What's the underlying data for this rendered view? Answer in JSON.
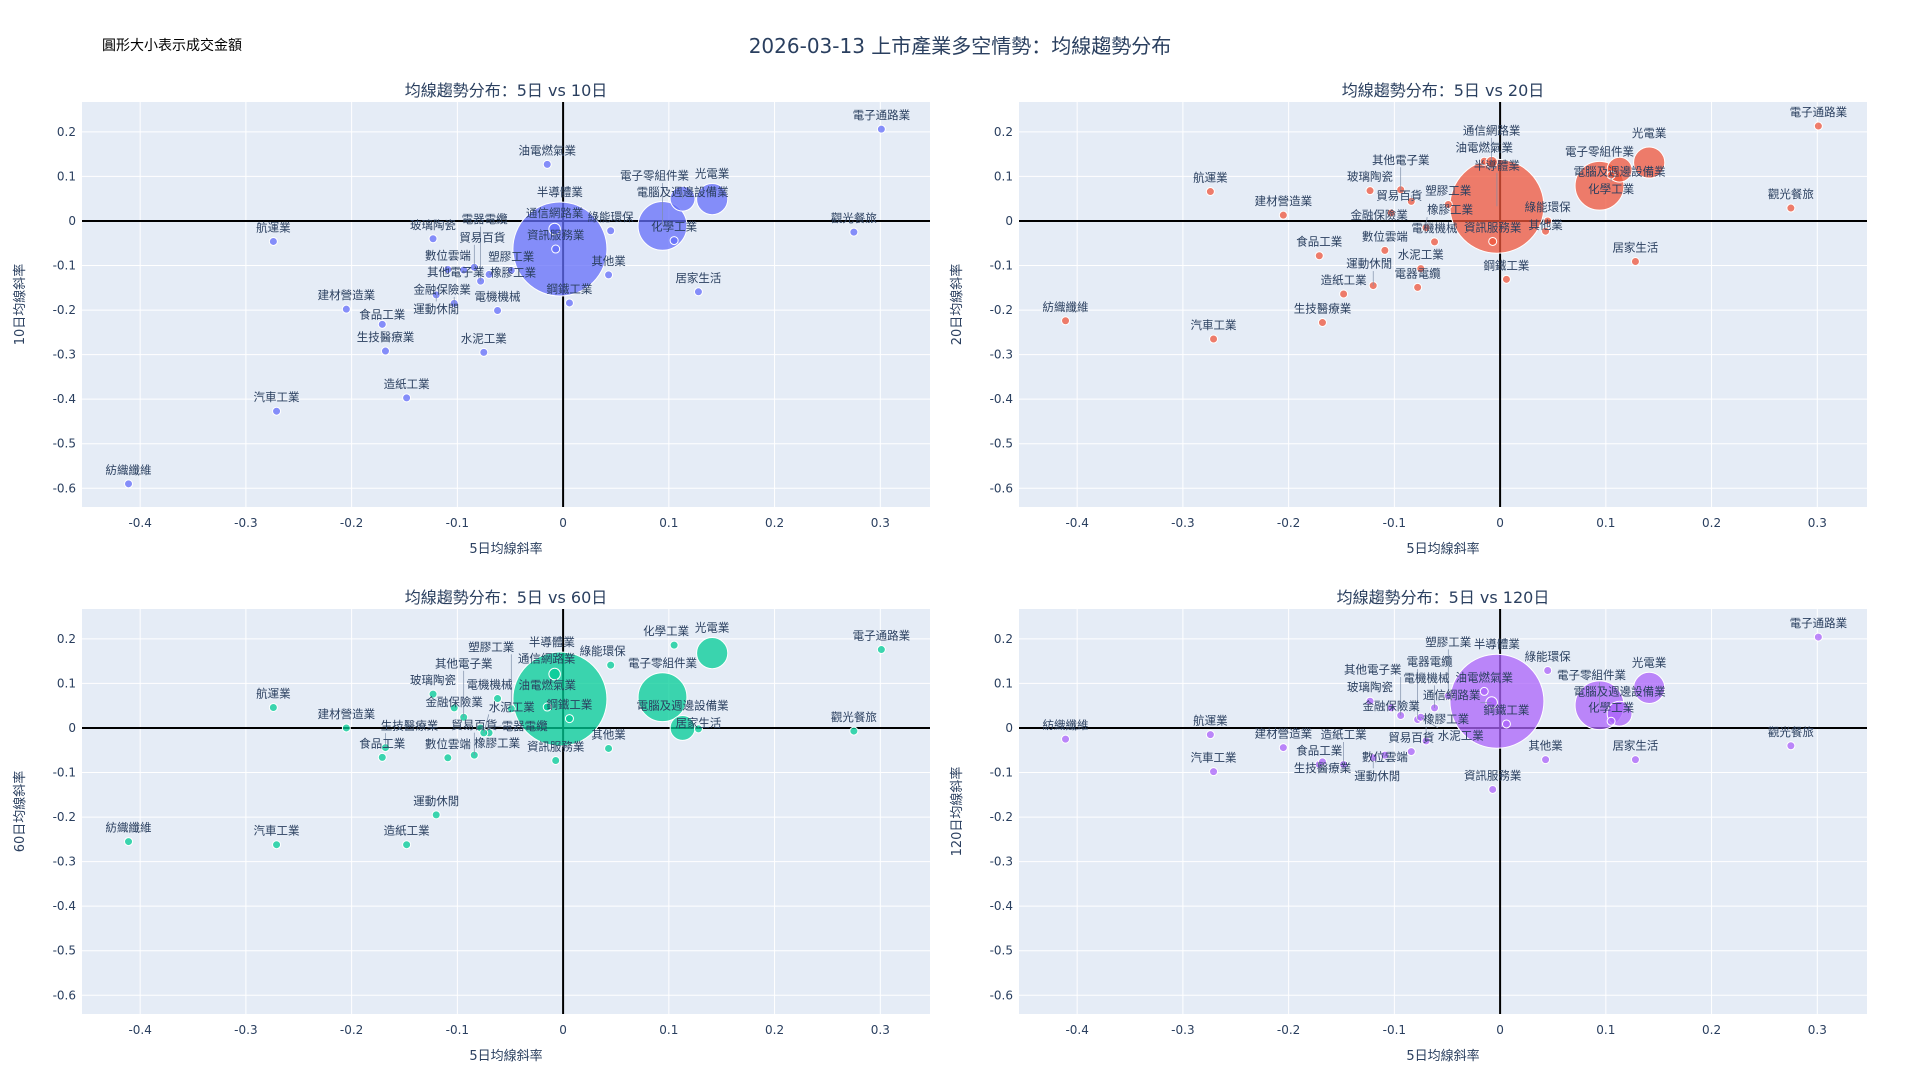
{
  "title": "2026-03-13 上市產業多空情勢：均線趨勢分布",
  "note": "圓形大小表示成交金額",
  "chart_data": [
    {
      "type": "scatter",
      "title": "均線趨勢分布：5日 vs 10日",
      "xlabel": "5日均線斜率",
      "ylabel": "10日均線斜率",
      "key": "y10",
      "color": "#636efa",
      "xlim": [
        -0.455,
        0.347
      ],
      "ylim": [
        -0.642,
        0.267
      ],
      "xticks": [
        -0.4,
        -0.3,
        -0.2,
        -0.1,
        0,
        0.1,
        0.2,
        0.3
      ],
      "yticks": [
        -0.6,
        -0.5,
        -0.4,
        -0.3,
        -0.2,
        -0.1,
        0,
        0.1,
        0.2
      ]
    },
    {
      "type": "scatter",
      "title": "均線趨勢分布：5日 vs 20日",
      "xlabel": "5日均線斜率",
      "ylabel": "20日均線斜率",
      "key": "y20",
      "color": "#ef553b",
      "xlim": [
        -0.455,
        0.347
      ],
      "ylim": [
        -0.642,
        0.267
      ],
      "xticks": [
        -0.4,
        -0.3,
        -0.2,
        -0.1,
        0,
        0.1,
        0.2,
        0.3
      ],
      "yticks": [
        -0.6,
        -0.5,
        -0.4,
        -0.3,
        -0.2,
        -0.1,
        0,
        0.1,
        0.2
      ]
    },
    {
      "type": "scatter",
      "title": "均線趨勢分布：5日 vs 60日",
      "xlabel": "5日均線斜率",
      "ylabel": "60日均線斜率",
      "key": "y60",
      "color": "#00cc96",
      "xlim": [
        -0.455,
        0.347
      ],
      "ylim": [
        -0.642,
        0.267
      ],
      "xticks": [
        -0.4,
        -0.3,
        -0.2,
        -0.1,
        0,
        0.1,
        0.2,
        0.3
      ],
      "yticks": [
        -0.6,
        -0.5,
        -0.4,
        -0.3,
        -0.2,
        -0.1,
        0,
        0.1,
        0.2
      ]
    },
    {
      "type": "scatter",
      "title": "均線趨勢分布：5日 vs 120日",
      "xlabel": "5日均線斜率",
      "ylabel": "120日均線斜率",
      "key": "y120",
      "color": "#ab63fa",
      "xlim": [
        -0.455,
        0.347
      ],
      "ylim": [
        -0.642,
        0.267
      ],
      "xticks": [
        -0.4,
        -0.3,
        -0.2,
        -0.1,
        0,
        0.1,
        0.2,
        0.3
      ],
      "yticks": [
        -0.6,
        -0.5,
        -0.4,
        -0.3,
        -0.2,
        -0.1,
        0,
        0.1,
        0.2
      ]
    }
  ],
  "industries": [
    {
      "name": "半導體業",
      "x": -0.003,
      "y10": -0.063,
      "y20": 0.033,
      "y60": 0.065,
      "y120": 0.06,
      "size": 100
    },
    {
      "name": "電子零組件業",
      "x": 0.094,
      "y10": -0.011,
      "y20": 0.079,
      "y60": 0.069,
      "y120": 0.051,
      "size": 27
    },
    {
      "name": "光電業",
      "x": 0.141,
      "y10": 0.049,
      "y20": 0.131,
      "y60": 0.168,
      "y120": 0.09,
      "size": 11
    },
    {
      "name": "電腦及週邊設備業",
      "x": 0.113,
      "y10": 0.05,
      "y20": 0.115,
      "y60": 0.0,
      "y120": 0.032,
      "size": 7
    },
    {
      "name": "化學工業",
      "x": 0.105,
      "y10": -0.044,
      "y20": 0.103,
      "y60": 0.186,
      "y120": 0.015,
      "size": 0.6
    },
    {
      "name": "電子通路業",
      "x": 0.301,
      "y10": 0.206,
      "y20": 0.213,
      "y60": 0.176,
      "y120": 0.204,
      "size": 0.5
    },
    {
      "name": "油電燃氣業",
      "x": -0.015,
      "y10": 0.127,
      "y20": 0.134,
      "y60": 0.047,
      "y120": 0.082,
      "size": 0.5
    },
    {
      "name": "通信網路業",
      "x": -0.008,
      "y10": -0.018,
      "y20": 0.132,
      "y60": 0.121,
      "y120": 0.057,
      "size": 1.5
    },
    {
      "name": "資訊服務業",
      "x": -0.007,
      "y10": -0.063,
      "y20": -0.046,
      "y60": -0.073,
      "y120": -0.138,
      "size": 0.6
    },
    {
      "name": "綠能環保",
      "x": 0.045,
      "y10": -0.022,
      "y20": 0.0,
      "y60": 0.141,
      "y120": 0.129,
      "size": 0.5
    },
    {
      "name": "其他業",
      "x": 0.043,
      "y10": -0.121,
      "y20": -0.023,
      "y60": -0.046,
      "y120": -0.071,
      "size": 0.5
    },
    {
      "name": "觀光餐旅",
      "x": 0.275,
      "y10": -0.025,
      "y20": 0.029,
      "y60": -0.007,
      "y120": -0.04,
      "size": 0.5
    },
    {
      "name": "居家生活",
      "x": 0.128,
      "y10": -0.159,
      "y20": -0.091,
      "y60": -0.002,
      "y120": -0.071,
      "size": 0.5
    },
    {
      "name": "鋼鐵工業",
      "x": 0.006,
      "y10": -0.184,
      "y20": -0.131,
      "y60": 0.021,
      "y120": 0.009,
      "size": 0.6
    },
    {
      "name": "航運業",
      "x": -0.274,
      "y10": -0.046,
      "y20": 0.066,
      "y60": 0.046,
      "y120": -0.015,
      "size": 0.5
    },
    {
      "name": "玻璃陶瓷",
      "x": -0.123,
      "y10": -0.04,
      "y20": 0.068,
      "y60": 0.076,
      "y120": 0.06,
      "size": 0.5
    },
    {
      "name": "建材營造業",
      "x": -0.205,
      "y10": -0.198,
      "y20": 0.013,
      "y60": 0.0,
      "y120": -0.044,
      "size": 0.5
    },
    {
      "name": "金融保險業",
      "x": -0.103,
      "y10": -0.185,
      "y20": 0.018,
      "y60": 0.045,
      "y120": 0.045,
      "size": 0.5
    },
    {
      "name": "塑膠工業",
      "x": -0.049,
      "y10": -0.111,
      "y20": 0.037,
      "y60": 0.043,
      "y120": 0.072,
      "size": 0.5
    },
    {
      "name": "電機機械",
      "x": -0.062,
      "y10": -0.201,
      "y20": -0.047,
      "y60": 0.066,
      "y120": 0.045,
      "size": 0.5
    },
    {
      "name": "數位雲端",
      "x": -0.109,
      "y10": -0.109,
      "y20": -0.066,
      "y60": -0.067,
      "y120": -0.061,
      "size": 0.5
    },
    {
      "name": "貿易百貨",
      "x": -0.084,
      "y10": -0.104,
      "y20": 0.044,
      "y60": -0.061,
      "y120": -0.053,
      "size": 0.5
    },
    {
      "name": "其他電子業",
      "x": -0.094,
      "y10": -0.11,
      "y20": 0.07,
      "y60": 0.024,
      "y120": 0.028,
      "size": 0.5
    },
    {
      "name": "橡膠工業",
      "x": -0.07,
      "y10": -0.12,
      "y20": -0.015,
      "y60": -0.011,
      "y120": -0.029,
      "size": 0.5
    },
    {
      "name": "電器電纜",
      "x": -0.078,
      "y10": -0.135,
      "y20": -0.149,
      "y60": 0.0,
      "y120": 0.019,
      "size": 0.5
    },
    {
      "name": "水泥工業",
      "x": -0.075,
      "y10": -0.295,
      "y20": -0.107,
      "y60": -0.011,
      "y120": 0.024,
      "size": 0.5
    },
    {
      "name": "運動休閒",
      "x": -0.12,
      "y10": -0.166,
      "y20": -0.145,
      "y60": -0.195,
      "y120": -0.067,
      "size": 0.5
    },
    {
      "name": "食品工業",
      "x": -0.171,
      "y10": -0.232,
      "y20": -0.078,
      "y60": -0.066,
      "y120": -0.082,
      "size": 0.5
    },
    {
      "name": "生技醫療業",
      "x": -0.168,
      "y10": -0.292,
      "y20": -0.228,
      "y60": -0.044,
      "y120": -0.076,
      "size": 0.5
    },
    {
      "name": "造紙工業",
      "x": -0.148,
      "y10": -0.397,
      "y20": -0.164,
      "y60": -0.262,
      "y120": -0.082,
      "size": 0.5
    },
    {
      "name": "汽車工業",
      "x": -0.271,
      "y10": -0.427,
      "y20": -0.265,
      "y60": -0.262,
      "y120": -0.098,
      "size": 0.5
    },
    {
      "name": "紡織纖維",
      "x": -0.411,
      "y10": -0.59,
      "y20": -0.224,
      "y60": -0.255,
      "y120": -0.025,
      "size": 0.5
    }
  ]
}
